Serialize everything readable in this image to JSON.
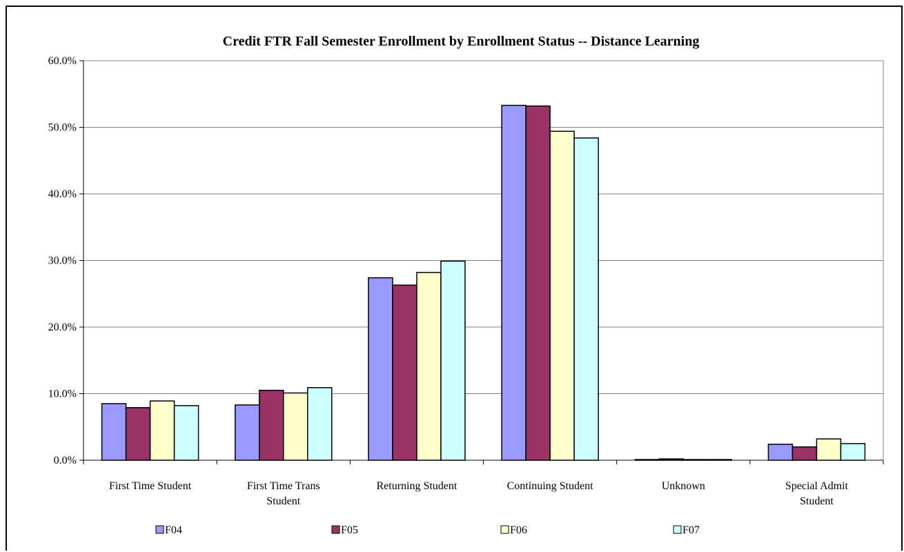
{
  "chart_data": {
    "type": "bar",
    "title": "Credit FTR Fall Semester Enrollment by Enrollment Status -- Distance Learning",
    "xlabel": "",
    "ylabel": "",
    "ylim": [
      0,
      60
    ],
    "yticks": [
      "0.0%",
      "10.0%",
      "20.0%",
      "30.0%",
      "40.0%",
      "50.0%",
      "60.0%"
    ],
    "grid": true,
    "legend_position": "bottom",
    "categories": [
      [
        "First Time Student"
      ],
      [
        "First Time Trans",
        "Student"
      ],
      [
        "Returning Student"
      ],
      [
        "Continuing Student"
      ],
      [
        "Unknown"
      ],
      [
        "Special Admit",
        "Student"
      ]
    ],
    "series": [
      {
        "name": "F04",
        "color": "#9999ff",
        "values": [
          8.5,
          8.3,
          27.4,
          53.3,
          0.1,
          2.4
        ]
      },
      {
        "name": "F05",
        "color": "#993366",
        "values": [
          7.9,
          10.5,
          26.3,
          53.2,
          0.2,
          2.0
        ]
      },
      {
        "name": "F06",
        "color": "#ffffcc",
        "values": [
          8.9,
          10.1,
          28.2,
          49.4,
          0.1,
          3.2
        ]
      },
      {
        "name": "F07",
        "color": "#ccffff",
        "values": [
          8.2,
          10.9,
          29.9,
          48.4,
          0.1,
          2.5
        ]
      }
    ]
  }
}
